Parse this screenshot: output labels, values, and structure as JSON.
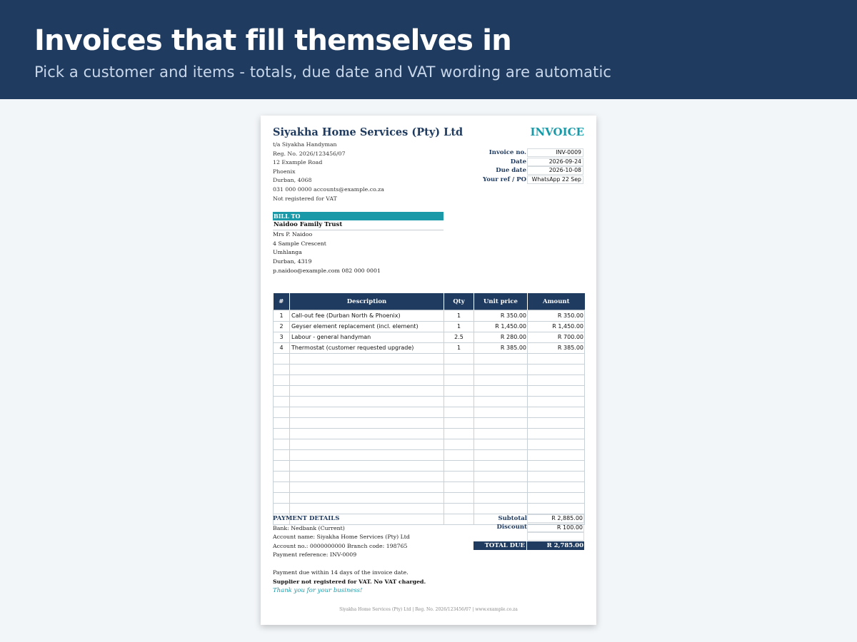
{
  "banner": {
    "title": "Invoices that fill themselves in",
    "subtitle": "Pick a customer and items - totals, due date and VAT wording are automatic"
  },
  "company": {
    "name": "Siyakha Home Services (Pty) Ltd",
    "lines": [
      "t/a Siyakha Handyman",
      "Reg. No. 2026/123456/07",
      "12 Example Road",
      "Phoenix",
      "Durban, 4068",
      "031 000 0000 accounts@example.co.za",
      "Not registered for VAT"
    ]
  },
  "invoice": {
    "heading": "INVOICE",
    "meta": [
      {
        "label": "Invoice no.",
        "value": "INV-0009"
      },
      {
        "label": "Date",
        "value": "2026-09-24"
      },
      {
        "label": "Due date",
        "value": "2026-10-08"
      },
      {
        "label": "Your ref / PO",
        "value": "WhatsApp 22 Sep"
      }
    ]
  },
  "bill_to": {
    "heading": "BILL TO",
    "name": "Naidoo Family Trust",
    "lines": [
      "Mrs P. Naidoo",
      "4 Sample Crescent",
      "Umhlanga",
      "Durban, 4319",
      "p.naidoo@example.com 082 000 0001"
    ]
  },
  "items": {
    "headers": [
      "#",
      "Description",
      "Qty",
      "Unit price",
      "Amount"
    ],
    "rows": [
      {
        "num": "1",
        "desc": "Call-out fee (Durban North & Phoenix)",
        "qty": "1",
        "unit": "R 350.00",
        "amount": "R 350.00"
      },
      {
        "num": "2",
        "desc": "Geyser element replacement (incl. element)",
        "qty": "1",
        "unit": "R 1,450.00",
        "amount": "R 1,450.00"
      },
      {
        "num": "3",
        "desc": "Labour - general handyman",
        "qty": "2.5",
        "unit": "R 280.00",
        "amount": "R 700.00"
      },
      {
        "num": "4",
        "desc": "Thermostat (customer requested upgrade)",
        "qty": "1",
        "unit": "R 385.00",
        "amount": "R 385.00"
      }
    ]
  },
  "payment": {
    "heading": "PAYMENT DETAILS",
    "lines": [
      "Bank: Nedbank   (Current)",
      "Account name: Siyakha Home Services (Pty) Ltd",
      "Account no.: 0000000000   Branch code: 198765",
      "Payment reference: INV-0009"
    ]
  },
  "notes": {
    "terms": "Payment due within 14 days of the invoice date.",
    "vat": "Supplier not registered for VAT. No VAT charged.",
    "thanks": "Thank you for your business!"
  },
  "totals": {
    "subtotal_label": "Subtotal",
    "subtotal": "R 2,885.00",
    "discount_label": "Discount",
    "discount": "R 100.00",
    "total_label": "TOTAL DUE",
    "total": "R 2,785.00"
  },
  "footer": "Siyakha Home Services (Pty) Ltd | Reg. No. 2026/123456/07 | www.example.co.za",
  "colors": {
    "navy": "#1f3b60",
    "teal": "#1a9aa8",
    "page_bg": "#f3f6f9"
  }
}
